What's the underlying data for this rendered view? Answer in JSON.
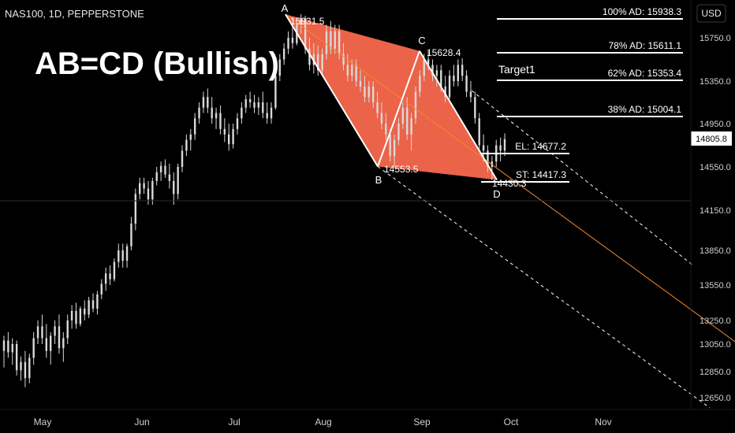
{
  "header": {
    "symbol": "NAS100, 1D, PEPPERSTONE",
    "currency_button": "USD"
  },
  "title": "AB=CD (Bullish)",
  "chart_data": {
    "type": "candlestick",
    "symbol": "NAS100",
    "timeframe": "1D",
    "source": "PEPPERSTONE",
    "currency": "USD",
    "y_axis": {
      "ticks": [
        "15750.0",
        "15350.0",
        "14950.0",
        "14550.0",
        "14150.0",
        "13850.0",
        "13550.0",
        "13250.0",
        "13050.0",
        "12850.0",
        "12650.0"
      ]
    },
    "x_axis": {
      "ticks": [
        "May",
        "Jun",
        "Jul",
        "Aug",
        "Sep",
        "Oct",
        "Nov"
      ]
    },
    "last_price": 14805.8,
    "pattern": {
      "name": "AB=CD (Bullish)",
      "points": [
        {
          "label": "A",
          "price": 15931.5,
          "date": "Jul"
        },
        {
          "label": "B",
          "price": 14553.5,
          "date": "Aug"
        },
        {
          "label": "C",
          "price": 15628.4,
          "date": "Sep"
        },
        {
          "label": "D",
          "price": 14430.3,
          "date": "Sep"
        }
      ]
    },
    "levels": [
      {
        "label": "100% AD: 15938.3",
        "price": 15938.3
      },
      {
        "label": "78% AD: 15611.1",
        "price": 15611.1
      },
      {
        "label": "62% AD: 15353.4",
        "price": 15353.4
      },
      {
        "label": "38% AD: 15004.1",
        "price": 15004.1
      },
      {
        "label": "EL: 14677.2",
        "price": 14677.2
      },
      {
        "label": "ST: 14417.3",
        "price": 14417.3
      }
    ],
    "annotations": [
      "Target1"
    ],
    "horizontal_line": 14245,
    "price_low": 12730,
    "candles": [
      {
        "o": 13000,
        "h": 13120,
        "l": 12880,
        "c": 13080
      },
      {
        "o": 13080,
        "h": 13150,
        "l": 12950,
        "c": 12990
      },
      {
        "o": 12990,
        "h": 13100,
        "l": 12900,
        "c": 13050
      },
      {
        "o": 13050,
        "h": 13080,
        "l": 12820,
        "c": 12860
      },
      {
        "o": 12860,
        "h": 12960,
        "l": 12780,
        "c": 12920
      },
      {
        "o": 12920,
        "h": 13000,
        "l": 12730,
        "c": 12800
      },
      {
        "o": 12800,
        "h": 12980,
        "l": 12760,
        "c": 12950
      },
      {
        "o": 12950,
        "h": 13150,
        "l": 12900,
        "c": 13100
      },
      {
        "o": 13100,
        "h": 13250,
        "l": 13050,
        "c": 13200
      },
      {
        "o": 13200,
        "h": 13300,
        "l": 13050,
        "c": 13100
      },
      {
        "o": 13100,
        "h": 13220,
        "l": 12950,
        "c": 13000
      },
      {
        "o": 13000,
        "h": 13150,
        "l": 12900,
        "c": 13120
      },
      {
        "o": 13120,
        "h": 13250,
        "l": 13050,
        "c": 13200
      },
      {
        "o": 13200,
        "h": 13300,
        "l": 12980,
        "c": 13020
      },
      {
        "o": 13020,
        "h": 13150,
        "l": 12920,
        "c": 13100
      },
      {
        "o": 13100,
        "h": 13300,
        "l": 13050,
        "c": 13250
      },
      {
        "o": 13250,
        "h": 13380,
        "l": 13180,
        "c": 13330
      },
      {
        "o": 13330,
        "h": 13400,
        "l": 13180,
        "c": 13220
      },
      {
        "o": 13220,
        "h": 13370,
        "l": 13200,
        "c": 13350
      },
      {
        "o": 13350,
        "h": 13420,
        "l": 13250,
        "c": 13300
      },
      {
        "o": 13300,
        "h": 13450,
        "l": 13270,
        "c": 13420
      },
      {
        "o": 13420,
        "h": 13480,
        "l": 13320,
        "c": 13350
      },
      {
        "o": 13350,
        "h": 13500,
        "l": 13300,
        "c": 13470
      },
      {
        "o": 13470,
        "h": 13600,
        "l": 13430,
        "c": 13560
      },
      {
        "o": 13560,
        "h": 13700,
        "l": 13500,
        "c": 13650
      },
      {
        "o": 13650,
        "h": 13720,
        "l": 13550,
        "c": 13600
      },
      {
        "o": 13600,
        "h": 13780,
        "l": 13580,
        "c": 13750
      },
      {
        "o": 13750,
        "h": 13900,
        "l": 13700,
        "c": 13850
      },
      {
        "o": 13850,
        "h": 13900,
        "l": 13700,
        "c": 13760
      },
      {
        "o": 13760,
        "h": 13900,
        "l": 13700,
        "c": 13880
      },
      {
        "o": 13880,
        "h": 14100,
        "l": 13850,
        "c": 14050
      },
      {
        "o": 14050,
        "h": 14350,
        "l": 14000,
        "c": 14300
      },
      {
        "o": 14300,
        "h": 14450,
        "l": 14250,
        "c": 14400
      },
      {
        "o": 14400,
        "h": 14450,
        "l": 14300,
        "c": 14350
      },
      {
        "o": 14350,
        "h": 14420,
        "l": 14200,
        "c": 14250
      },
      {
        "o": 14250,
        "h": 14450,
        "l": 14200,
        "c": 14420
      },
      {
        "o": 14420,
        "h": 14550,
        "l": 14380,
        "c": 14500
      },
      {
        "o": 14500,
        "h": 14600,
        "l": 14420,
        "c": 14560
      },
      {
        "o": 14560,
        "h": 14620,
        "l": 14450,
        "c": 14480
      },
      {
        "o": 14480,
        "h": 14580,
        "l": 14350,
        "c": 14420
      },
      {
        "o": 14420,
        "h": 14500,
        "l": 14200,
        "c": 14300
      },
      {
        "o": 14300,
        "h": 14580,
        "l": 14250,
        "c": 14550
      },
      {
        "o": 14550,
        "h": 14750,
        "l": 14500,
        "c": 14700
      },
      {
        "o": 14700,
        "h": 14850,
        "l": 14650,
        "c": 14800
      },
      {
        "o": 14800,
        "h": 14900,
        "l": 14700,
        "c": 14850
      },
      {
        "o": 14850,
        "h": 15050,
        "l": 14800,
        "c": 15000
      },
      {
        "o": 15000,
        "h": 15150,
        "l": 14950,
        "c": 15100
      },
      {
        "o": 15100,
        "h": 15250,
        "l": 15050,
        "c": 15200
      },
      {
        "o": 15200,
        "h": 15280,
        "l": 15050,
        "c": 15100
      },
      {
        "o": 15100,
        "h": 15200,
        "l": 14950,
        "c": 15000
      },
      {
        "o": 15000,
        "h": 15100,
        "l": 14900,
        "c": 15050
      },
      {
        "o": 15050,
        "h": 15120,
        "l": 14850,
        "c": 14900
      },
      {
        "o": 14900,
        "h": 15000,
        "l": 14780,
        "c": 14850
      },
      {
        "o": 14850,
        "h": 14950,
        "l": 14700,
        "c": 14760
      },
      {
        "o": 14760,
        "h": 14950,
        "l": 14720,
        "c": 14900
      },
      {
        "o": 14900,
        "h": 15050,
        "l": 14850,
        "c": 15000
      },
      {
        "o": 15000,
        "h": 15150,
        "l": 14950,
        "c": 15100
      },
      {
        "o": 15100,
        "h": 15220,
        "l": 15050,
        "c": 15180
      },
      {
        "o": 15180,
        "h": 15250,
        "l": 15100,
        "c": 15150
      },
      {
        "o": 15150,
        "h": 15220,
        "l": 15050,
        "c": 15100
      },
      {
        "o": 15100,
        "h": 15200,
        "l": 15030,
        "c": 15150
      },
      {
        "o": 15150,
        "h": 15250,
        "l": 15000,
        "c": 15050
      },
      {
        "o": 15050,
        "h": 15150,
        "l": 14950,
        "c": 15000
      },
      {
        "o": 15000,
        "h": 15150,
        "l": 14950,
        "c": 15100
      },
      {
        "o": 15100,
        "h": 15450,
        "l": 15080,
        "c": 15400
      },
      {
        "o": 15400,
        "h": 15600,
        "l": 15350,
        "c": 15550
      },
      {
        "o": 15550,
        "h": 15700,
        "l": 15500,
        "c": 15650
      },
      {
        "o": 15650,
        "h": 15800,
        "l": 15600,
        "c": 15750
      },
      {
        "o": 15750,
        "h": 15850,
        "l": 15650,
        "c": 15700
      },
      {
        "o": 15700,
        "h": 15880,
        "l": 15680,
        "c": 15850
      },
      {
        "o": 15850,
        "h": 15931.5,
        "l": 15780,
        "c": 15900
      },
      {
        "o": 15900,
        "h": 15920,
        "l": 15600,
        "c": 15650
      },
      {
        "o": 15650,
        "h": 15750,
        "l": 15450,
        "c": 15500
      },
      {
        "o": 15500,
        "h": 15700,
        "l": 15420,
        "c": 15600
      },
      {
        "o": 15600,
        "h": 15680,
        "l": 15400,
        "c": 15450
      },
      {
        "o": 15450,
        "h": 15650,
        "l": 15400,
        "c": 15600
      },
      {
        "o": 15600,
        "h": 15850,
        "l": 15550,
        "c": 15800
      },
      {
        "o": 15800,
        "h": 15880,
        "l": 15600,
        "c": 15650
      },
      {
        "o": 15650,
        "h": 15850,
        "l": 15600,
        "c": 15800
      },
      {
        "o": 15800,
        "h": 15850,
        "l": 15550,
        "c": 15600
      },
      {
        "o": 15600,
        "h": 15700,
        "l": 15450,
        "c": 15500
      },
      {
        "o": 15500,
        "h": 15600,
        "l": 15350,
        "c": 15400
      },
      {
        "o": 15400,
        "h": 15550,
        "l": 15350,
        "c": 15500
      },
      {
        "o": 15500,
        "h": 15550,
        "l": 15300,
        "c": 15350
      },
      {
        "o": 15350,
        "h": 15450,
        "l": 15250,
        "c": 15300
      },
      {
        "o": 15300,
        "h": 15400,
        "l": 15150,
        "c": 15200
      },
      {
        "o": 15200,
        "h": 15350,
        "l": 15150,
        "c": 15300
      },
      {
        "o": 15300,
        "h": 15350,
        "l": 15100,
        "c": 15150
      },
      {
        "o": 15150,
        "h": 15250,
        "l": 15000,
        "c": 15050
      },
      {
        "o": 15050,
        "h": 15150,
        "l": 14900,
        "c": 14950
      },
      {
        "o": 14950,
        "h": 15050,
        "l": 14800,
        "c": 14850
      },
      {
        "o": 14850,
        "h": 14900,
        "l": 14600,
        "c": 14650
      },
      {
        "o": 14650,
        "h": 14850,
        "l": 14553.5,
        "c": 14800
      },
      {
        "o": 14800,
        "h": 15000,
        "l": 14750,
        "c": 14950
      },
      {
        "o": 14950,
        "h": 15150,
        "l": 14900,
        "c": 15100
      },
      {
        "o": 15100,
        "h": 15200,
        "l": 14800,
        "c": 14850
      },
      {
        "o": 14850,
        "h": 15050,
        "l": 14700,
        "c": 15000
      },
      {
        "o": 15000,
        "h": 15300,
        "l": 14950,
        "c": 15250
      },
      {
        "o": 15250,
        "h": 15450,
        "l": 15200,
        "c": 15400
      },
      {
        "o": 15400,
        "h": 15600,
        "l": 15350,
        "c": 15550
      },
      {
        "o": 15550,
        "h": 15628.4,
        "l": 15450,
        "c": 15500
      },
      {
        "o": 15500,
        "h": 15550,
        "l": 15350,
        "c": 15400
      },
      {
        "o": 15400,
        "h": 15500,
        "l": 15300,
        "c": 15450
      },
      {
        "o": 15450,
        "h": 15500,
        "l": 15250,
        "c": 15300
      },
      {
        "o": 15300,
        "h": 15400,
        "l": 15150,
        "c": 15200
      },
      {
        "o": 15200,
        "h": 15450,
        "l": 15180,
        "c": 15400
      },
      {
        "o": 15400,
        "h": 15500,
        "l": 15300,
        "c": 15350
      },
      {
        "o": 15350,
        "h": 15550,
        "l": 15300,
        "c": 15500
      },
      {
        "o": 15500,
        "h": 15560,
        "l": 15350,
        "c": 15400
      },
      {
        "o": 15400,
        "h": 15450,
        "l": 15200,
        "c": 15250
      },
      {
        "o": 15250,
        "h": 15350,
        "l": 15150,
        "c": 15200
      },
      {
        "o": 15200,
        "h": 15250,
        "l": 14950,
        "c": 15000
      },
      {
        "o": 15000,
        "h": 15050,
        "l": 14700,
        "c": 14750
      },
      {
        "o": 14750,
        "h": 14850,
        "l": 14600,
        "c": 14700
      },
      {
        "o": 14700,
        "h": 14750,
        "l": 14500,
        "c": 14550
      },
      {
        "o": 14550,
        "h": 14650,
        "l": 14430.3,
        "c": 14600
      },
      {
        "o": 14600,
        "h": 14800,
        "l": 14550,
        "c": 14750
      },
      {
        "o": 14750,
        "h": 14820,
        "l": 14600,
        "c": 14700
      },
      {
        "o": 14700,
        "h": 14860,
        "l": 14650,
        "c": 14805.8
      }
    ]
  },
  "colors": {
    "background": "#000000",
    "candle": "#d9d9d9",
    "pattern_fill": "#ff6b4f",
    "pattern_line": "#ffffff",
    "diagonal": "#f5872a",
    "level_line": "#ffffff",
    "channel_line": "#ffffff",
    "last_price_bg": "#ffffff",
    "last_price_text": "#000000",
    "axis_text": "#d0d0d0"
  }
}
